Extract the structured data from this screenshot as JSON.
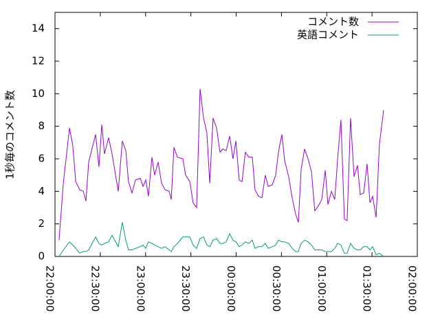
{
  "chart_data": {
    "type": "line",
    "y_label": "1秒毎のコメント数",
    "x": [
      2.7,
      5.5,
      9.6,
      11.8,
      13.7,
      16.4,
      18.7,
      20.5,
      22.3,
      26.9,
      29.1,
      31.0,
      32.8,
      35.5,
      37.8,
      41.9,
      44.6,
      46.9,
      48.7,
      51.0,
      53.3,
      56.5,
      58.3,
      60.1,
      61.9,
      64.2,
      66.0,
      68.3,
      70.6,
      72.9,
      75.6,
      77.0,
      78.8,
      81.1,
      84.7,
      86.5,
      89.3,
      91.5,
      93.8,
      96.1,
      98.4,
      100.6,
      102.5,
      104.7,
      107.0,
      109.3,
      111.1,
      113.4,
      115.7,
      117.9,
      119.8,
      122.0,
      123.9,
      126.1,
      128.4,
      130.7,
      132.5,
      134.8,
      137.1,
      139.3,
      141.2,
      143.9,
      146.2,
      148.0,
      150.3,
      152.1,
      154.8,
      157.1,
      159.4,
      161.2,
      163.0,
      165.3,
      167.6,
      169.9,
      172.1,
      174.4,
      176.7,
      179.0,
      180.8,
      183.1,
      185.3,
      187.2,
      189.4,
      191.7,
      193.5,
      195.8,
      198.1,
      200.4,
      202.2,
      204.5,
      206.7,
      208.6,
      210.4,
      212.7,
      214.9,
      217.7
    ],
    "series": [
      {
        "name": "コメント数",
        "color": "#9400d3",
        "values": [
          1.0,
          4.5,
          7.9,
          6.8,
          4.6,
          4.1,
          4.0,
          3.4,
          5.8,
          7.5,
          5.5,
          8.1,
          6.3,
          7.3,
          6.3,
          4.0,
          7.1,
          6.5,
          4.6,
          3.9,
          4.7,
          4.8,
          4.3,
          4.7,
          3.7,
          6.1,
          5.0,
          5.8,
          4.5,
          4.1,
          4.0,
          3.5,
          6.7,
          6.1,
          6.0,
          5.0,
          4.6,
          3.3,
          3.0,
          10.3,
          8.5,
          7.6,
          4.5,
          8.5,
          7.9,
          6.4,
          6.6,
          6.5,
          7.4,
          6.0,
          7.1,
          4.7,
          4.6,
          6.4,
          6.1,
          6.1,
          4.1,
          3.7,
          3.6,
          5.0,
          4.3,
          4.4,
          5.0,
          6.4,
          7.5,
          5.9,
          4.9,
          3.6,
          2.6,
          2.1,
          5.3,
          6.6,
          6.0,
          5.2,
          2.8,
          3.1,
          3.5,
          5.3,
          3.2,
          4.0,
          3.5,
          6.0,
          8.4,
          2.3,
          2.2,
          8.5,
          4.9,
          5.6,
          3.8,
          3.9,
          5.7,
          3.3,
          3.7,
          2.4,
          6.9,
          9.0
        ]
      },
      {
        "name": "英語コメント",
        "color": "#009e73",
        "values": [
          0.0,
          0.4,
          0.9,
          0.7,
          0.5,
          0.2,
          0.3,
          0.3,
          0.4,
          1.2,
          0.8,
          0.7,
          0.8,
          0.9,
          1.3,
          0.6,
          2.1,
          1.0,
          0.4,
          0.4,
          0.5,
          0.6,
          0.7,
          0.5,
          0.9,
          0.8,
          0.7,
          0.6,
          0.5,
          0.6,
          0.4,
          0.3,
          0.6,
          0.8,
          1.2,
          1.2,
          1.2,
          0.7,
          0.5,
          1.1,
          1.2,
          0.7,
          0.6,
          1.0,
          1.1,
          0.8,
          0.8,
          0.9,
          1.4,
          1.0,
          0.9,
          0.6,
          0.7,
          0.9,
          0.8,
          1.0,
          0.5,
          0.6,
          0.6,
          0.8,
          0.5,
          0.6,
          0.7,
          1.0,
          0.9,
          0.9,
          0.8,
          0.5,
          0.3,
          0.3,
          0.8,
          1.0,
          0.9,
          0.7,
          0.4,
          0.4,
          0.4,
          0.3,
          0.3,
          0.3,
          0.5,
          0.8,
          0.7,
          0.2,
          0.2,
          0.8,
          0.5,
          0.4,
          0.4,
          0.6,
          0.6,
          0.4,
          0.6,
          0.1,
          0.2,
          0.0
        ]
      }
    ],
    "xlim": [
      0,
      240
    ],
    "xticks": [
      {
        "value": 0,
        "label": "22:00:00"
      },
      {
        "value": 30,
        "label": "22:30:00"
      },
      {
        "value": 60,
        "label": "23:00:00"
      },
      {
        "value": 90,
        "label": "23:30:00"
      },
      {
        "value": 120,
        "label": "00:00:00"
      },
      {
        "value": 150,
        "label": "00:30:00"
      },
      {
        "value": 180,
        "label": "01:00:00"
      },
      {
        "value": 210,
        "label": "01:30:00"
      },
      {
        "value": 240,
        "label": "02:00:00"
      }
    ],
    "ylim": [
      0,
      15
    ],
    "yticks": [
      0,
      2,
      4,
      6,
      8,
      10,
      12,
      14
    ],
    "legend": "top-right"
  }
}
